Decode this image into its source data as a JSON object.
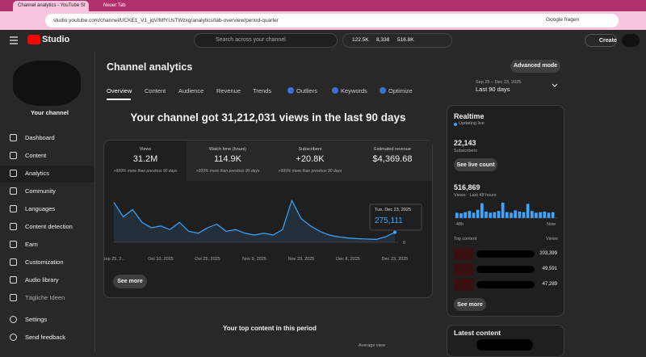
{
  "browser": {
    "tabs": [
      "Channel analytics - YouTube St",
      "Neuer Tab"
    ],
    "url": "studio.youtube.com/channel/UCKE1_V1_jqV/MfYUsTWzxg/analytics/tab-overview/period-quarter",
    "translate": "Google fragen"
  },
  "header": {
    "logo": "Studio",
    "search": "Search across your channel",
    "stats": [
      "122.5K",
      "8,338",
      "516.8K"
    ],
    "create": "Create"
  },
  "sidebar": {
    "channel": "Your channel",
    "items": [
      "Dashboard",
      "Content",
      "Analytics",
      "Community",
      "Languages",
      "Content detection",
      "Earn",
      "Customization",
      "Audio library",
      "Tägliche Ideen"
    ],
    "footer": [
      "Settings",
      "Send feedback"
    ]
  },
  "page": {
    "title": "Channel analytics",
    "advanced": "Advanced mode",
    "tabs": [
      "Overview",
      "Content",
      "Audience",
      "Revenue",
      "Trends",
      "Outliers",
      "Keywords",
      "Optimize"
    ],
    "period_range": "Sep 25 – Dec 23, 2025",
    "period": "Last 90 days"
  },
  "summary": {
    "headline": "Your channel got 31,212,031 views in the last 90 days",
    "metrics": [
      {
        "label": "Views",
        "value": "31.2M",
        "note": ">999% more than previous 90 days"
      },
      {
        "label": "Watch time (hours)",
        "value": "114.9K",
        "note": ">999% more than previous 90 days"
      },
      {
        "label": "Subscribers",
        "value": "+20.8K",
        "note": ">999% more than previous 90 days"
      },
      {
        "label": "Estimated revenue",
        "value": "$4,369.68"
      }
    ],
    "see_more": "See more"
  },
  "chart_data": {
    "type": "line",
    "categories": [
      "Sep 25, 2...",
      null,
      null,
      null,
      null,
      "Oct 10, 2025",
      null,
      null,
      null,
      null,
      "Oct 25, 2025",
      null,
      null,
      null,
      null,
      "Nov 9, 2025",
      null,
      null,
      null,
      null,
      "Nov 23, 2025",
      null,
      null,
      null,
      null,
      "Dec 8, 2025",
      null,
      null,
      null,
      null,
      "Dec 23, 2025"
    ],
    "values": [
      1100000,
      700000,
      900000,
      550000,
      400000,
      450000,
      350000,
      550000,
      300000,
      250000,
      400000,
      500000,
      300000,
      350000,
      250000,
      200000,
      250000,
      200000,
      350000,
      1150000,
      650000,
      450000,
      300000,
      200000,
      150000,
      120000,
      100000,
      90000,
      80000,
      150000,
      275111
    ],
    "color": "#3ea6ff",
    "ylim": [
      0,
      1200000
    ],
    "yticks": [
      0
    ],
    "tooltip": {
      "date": "Tue, Dec 23, 2025",
      "value": "275,111"
    }
  },
  "realtime": {
    "title": "Realtime",
    "live": "Updating live",
    "subscribers": "22,143",
    "subscribers_label": "Subscribers",
    "see_live": "See live count",
    "views": "516,869",
    "views_label": "Views · Last 48 hours",
    "bars": {
      "type": "bar",
      "values": [
        9000,
        8000,
        10000,
        12000,
        9000,
        14000,
        25000,
        11000,
        9000,
        10000,
        12000,
        26000,
        10000,
        9000,
        13000,
        11000,
        10000,
        24000,
        12000,
        9000,
        10000,
        11000,
        9000,
        10000
      ],
      "color": "#3ea6ff",
      "ylim": [
        0,
        30000
      ],
      "start": "-48h",
      "end": "Now"
    },
    "top_content": "Top content",
    "views_header": "Views",
    "top_views": [
      "203,399",
      "49,591",
      "47,289"
    ],
    "see_more": "See more"
  },
  "bottom": {
    "top_period": "Your top content in this period",
    "average_view": "Average view",
    "latest": "Latest content"
  }
}
